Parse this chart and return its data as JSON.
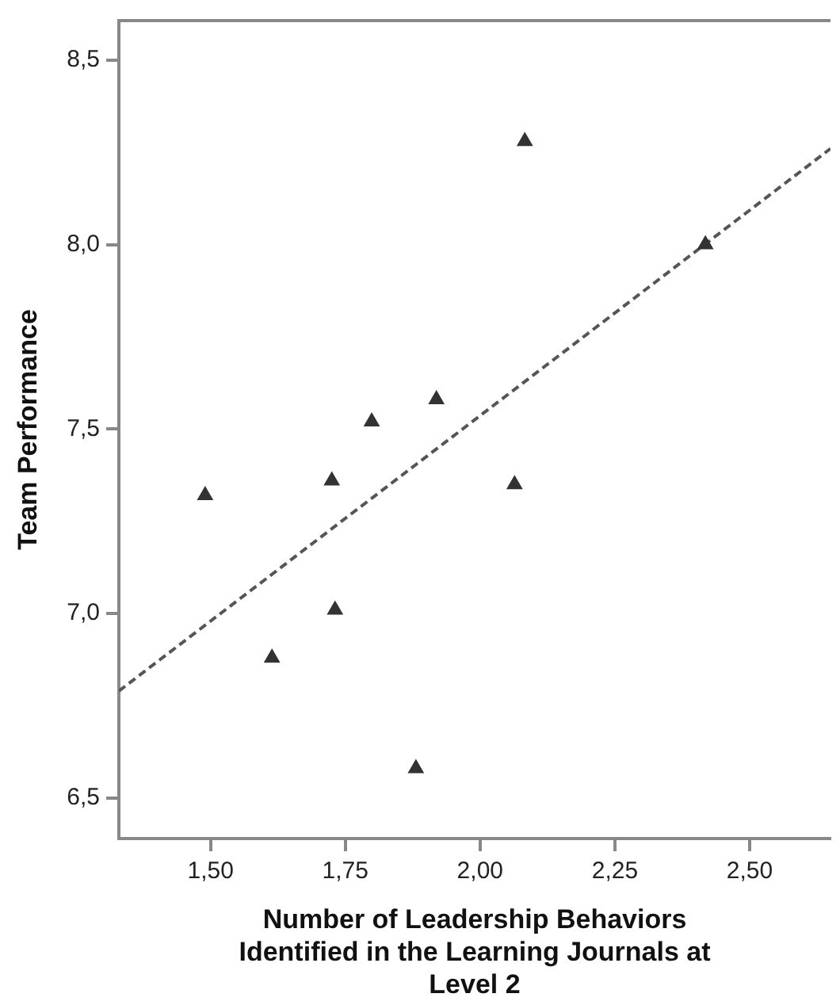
{
  "chart_data": {
    "type": "scatter",
    "xlabel": "Number of Leadership Behaviors Identified in the Learning Journals at Level 2",
    "ylabel": "Team Performance",
    "x": [
      1.49,
      1.614,
      1.725,
      1.731,
      1.799,
      1.881,
      1.919,
      2.064,
      2.083,
      2.418
    ],
    "series": [
      {
        "color": "#333333",
        "values": [
          7.32,
          6.88,
          7.36,
          7.01,
          7.52,
          6.58,
          7.58,
          7.35,
          8.28,
          8.0
        ],
        "marker": "triangle"
      },
      {
        "type": "line",
        "color": "#555555",
        "x": [
          1.33,
          2.65
        ],
        "values": [
          6.79,
          8.26
        ],
        "line_style": "dashed",
        "marker": "none"
      }
    ],
    "xlim": [
      1.33,
      2.65
    ],
    "ylim": [
      6.39,
      8.607
    ],
    "xticks": [
      {
        "value": 1.5,
        "label": "1,50"
      },
      {
        "value": 1.75,
        "label": "1,75"
      },
      {
        "value": 2.0,
        "label": "2,00"
      },
      {
        "value": 2.25,
        "label": "2,25"
      },
      {
        "value": 2.5,
        "label": "2,50"
      }
    ],
    "yticks": [
      {
        "value": 6.5,
        "label": "6,5"
      },
      {
        "value": 7.0,
        "label": "7,0"
      },
      {
        "value": 7.5,
        "label": "7,5"
      },
      {
        "value": 8.0,
        "label": "8,0"
      },
      {
        "value": 8.5,
        "label": "8,5"
      }
    ],
    "grid": false,
    "legend": false
  }
}
